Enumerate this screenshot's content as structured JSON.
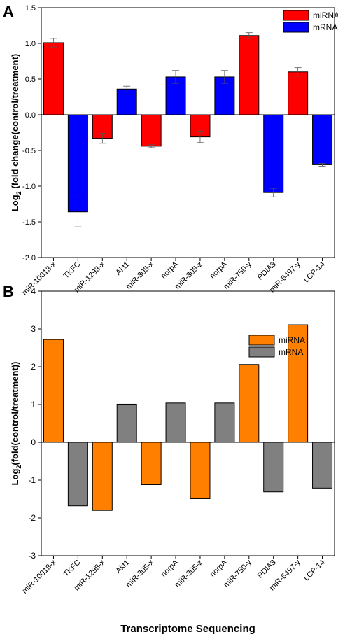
{
  "panel_labels": [
    "A",
    "B"
  ],
  "colors": {
    "a_mirna": "#ff0000",
    "a_mrna": "#0000ff",
    "b_mirna": "#ff8000",
    "b_mrna": "#808080"
  },
  "chart_data": [
    {
      "type": "bar",
      "panel": "A",
      "title": "",
      "xlabel": "",
      "ylabel_prefix": "Log",
      "ylabel_sub": "2",
      "ylabel_suffix": " (fold change(control/treatment)",
      "ylim": [
        -2.0,
        1.5
      ],
      "yticks": [
        1.5,
        1.0,
        0.5,
        0.0,
        -0.5,
        -1.0,
        -1.5,
        -2.0
      ],
      "ytick_labels": [
        "1.5",
        "1.0",
        "0.5",
        "0.0",
        "-0.5",
        "-1.0",
        "-1.5",
        "-2.0"
      ],
      "categories": [
        "miR-10018-x",
        "TKFC",
        "miR-1298-x",
        "Akt1",
        "miR-305-x",
        "norpA",
        "miR-305-z",
        "norpA",
        "miR-750-y",
        "PDIA3",
        "miR-6497-y",
        "LCP-14"
      ],
      "values": [
        1.01,
        -1.36,
        -0.33,
        0.36,
        -0.44,
        0.53,
        -0.31,
        0.53,
        1.11,
        -1.09,
        0.6,
        -0.7
      ],
      "errors": [
        0.06,
        0.21,
        0.07,
        0.04,
        0.02,
        0.09,
        0.08,
        0.09,
        0.04,
        0.06,
        0.06,
        0.02
      ],
      "series_by_bar": [
        "miRNA",
        "mRNA",
        "miRNA",
        "mRNA",
        "miRNA",
        "mRNA",
        "miRNA",
        "mRNA",
        "miRNA",
        "mRNA",
        "miRNA",
        "mRNA"
      ],
      "legend": [
        {
          "name": "miRNA",
          "color": "#ff0000"
        },
        {
          "name": "mRNA",
          "color": "#0000ff"
        }
      ],
      "legend_position": "top-right",
      "grid": false
    },
    {
      "type": "bar",
      "panel": "B",
      "title": "",
      "xlabel": "Transcriptome Sequencing",
      "ylabel_prefix": "Log",
      "ylabel_sub": "2",
      "ylabel_suffix": "(fold(control/treatment))",
      "ylim": [
        -3,
        4
      ],
      "yticks": [
        4,
        3,
        2,
        1,
        0,
        -1,
        -2,
        -3
      ],
      "ytick_labels": [
        "4",
        "3",
        "2",
        "1",
        "0",
        "-1",
        "-2",
        "-3"
      ],
      "categories": [
        "miR-10018-x",
        "TKFC",
        "miR-1298-x",
        "Akt1",
        "miR-305-x",
        "norpA",
        "miR-305-z",
        "norpA",
        "miR-750-y",
        "PDIA3",
        "miR-6497-y",
        "LCP-14"
      ],
      "values": [
        2.72,
        -1.68,
        -1.8,
        1.01,
        -1.12,
        1.04,
        -1.49,
        1.04,
        2.06,
        -1.31,
        3.11,
        -1.21
      ],
      "series_by_bar": [
        "miRNA",
        "mRNA",
        "miRNA",
        "mRNA",
        "miRNA",
        "mRNA",
        "miRNA",
        "mRNA",
        "miRNA",
        "mRNA",
        "miRNA",
        "mRNA"
      ],
      "legend": [
        {
          "name": "miRNA",
          "color": "#ff8000"
        },
        {
          "name": "mRNA",
          "color": "#808080"
        }
      ],
      "legend_position": "top-right",
      "grid": false
    }
  ]
}
